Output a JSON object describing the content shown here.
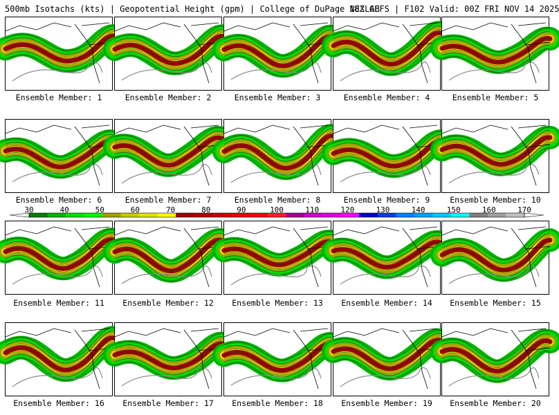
{
  "header": {
    "left": "500mb Isotachs (kts) | Geopotential Height (gpm) | College of DuPage NEXLAB",
    "right": "18Z GEFS | F102 Valid: 00Z FRI NOV 14 2025"
  },
  "members": [
    {
      "label": "Ensemble Member: 1"
    },
    {
      "label": "Ensemble Member: 2"
    },
    {
      "label": "Ensemble Member: 3"
    },
    {
      "label": "Ensemble Member: 4"
    },
    {
      "label": "Ensemble Member: 5"
    },
    {
      "label": "Ensemble Member: 6"
    },
    {
      "label": "Ensemble Member: 7"
    },
    {
      "label": "Ensemble Member: 8"
    },
    {
      "label": "Ensemble Member: 9"
    },
    {
      "label": "Ensemble Member: 10"
    },
    {
      "label": "Ensemble Member: 11"
    },
    {
      "label": "Ensemble Member: 12"
    },
    {
      "label": "Ensemble Member: 13"
    },
    {
      "label": "Ensemble Member: 14"
    },
    {
      "label": "Ensemble Member: 15"
    },
    {
      "label": "Ensemble Member: 16"
    },
    {
      "label": "Ensemble Member: 17"
    },
    {
      "label": "Ensemble Member: 18"
    },
    {
      "label": "Ensemble Member: 19"
    },
    {
      "label": "Ensemble Member: 20"
    }
  ],
  "colorbar": {
    "labels": [
      "30",
      "40",
      "50",
      "60",
      "70",
      "80",
      "90",
      "100",
      "110",
      "120",
      "130",
      "140",
      "150",
      "160",
      "170"
    ],
    "colors": [
      "#007f00",
      "#00b200",
      "#00e000",
      "#00ff00",
      "#a0a000",
      "#c8c800",
      "#e0e000",
      "#ffff00",
      "#9b0000",
      "#b00000",
      "#c80000",
      "#e00000",
      "#ff0000",
      "#ff2020",
      "#a0009b",
      "#c800c8",
      "#e000e0",
      "#ff00ff",
      "#0000c8",
      "#0040e0",
      "#0080ff",
      "#00a0ff",
      "#00c8ff",
      "#00ffff",
      "#808080",
      "#a0a0a0",
      "#c0c0c0"
    ]
  }
}
